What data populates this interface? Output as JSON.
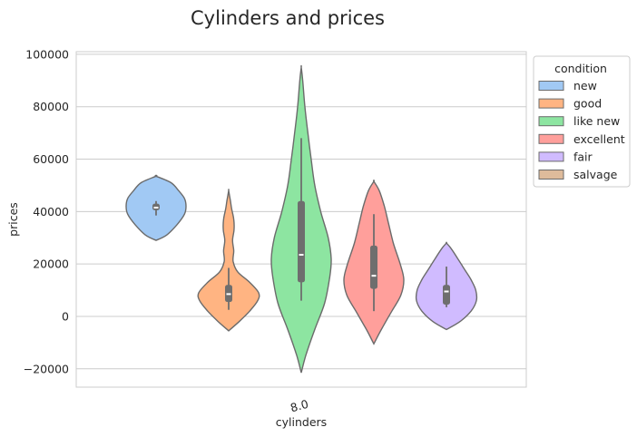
{
  "chart_data": {
    "type": "violin",
    "title": "Cylinders and prices",
    "xlabel": "cylinders",
    "ylabel": "prices",
    "categories": [
      "8.0"
    ],
    "ylim": [
      -27000,
      101000
    ],
    "yticks": [
      -20000,
      0,
      20000,
      40000,
      60000,
      80000,
      100000
    ],
    "ytick_labels": [
      "−20000",
      "0",
      "20000",
      "40000",
      "60000",
      "80000",
      "100000"
    ],
    "grid": true,
    "legend": {
      "title": "condition",
      "placement": "upper-right-outside"
    },
    "series": [
      {
        "name": "new",
        "color": "#a1c9f4",
        "quartiles": [
          40500,
          43000
        ],
        "median": 41500,
        "whisker": [
          38500,
          44000
        ],
        "violin": [
          [
            29000,
            0.0
          ],
          [
            31000,
            0.35
          ],
          [
            35000,
            0.7
          ],
          [
            39000,
            0.95
          ],
          [
            42000,
            1.0
          ],
          [
            45000,
            0.95
          ],
          [
            48000,
            0.75
          ],
          [
            51000,
            0.5
          ],
          [
            53500,
            0.0
          ]
        ]
      },
      {
        "name": "good",
        "color": "#ffb482",
        "quartiles": [
          5500,
          12000
        ],
        "median": 8500,
        "whisker": [
          2500,
          18500
        ],
        "violin": [
          [
            -5500,
            0.0
          ],
          [
            -2000,
            0.35
          ],
          [
            2000,
            0.7
          ],
          [
            6000,
            0.97
          ],
          [
            9000,
            1.0
          ],
          [
            13000,
            0.7
          ],
          [
            17000,
            0.3
          ],
          [
            21000,
            0.15
          ],
          [
            25000,
            0.17
          ],
          [
            29000,
            0.13
          ],
          [
            33000,
            0.18
          ],
          [
            37000,
            0.17
          ],
          [
            41000,
            0.1
          ],
          [
            44000,
            0.06
          ],
          [
            48000,
            0.0
          ]
        ]
      },
      {
        "name": "like new",
        "color": "#8de5a1",
        "quartiles": [
          13000,
          44000
        ],
        "median": 23500,
        "whisker": [
          6000,
          68000
        ],
        "violin": [
          [
            -21500,
            0.0
          ],
          [
            -15000,
            0.15
          ],
          [
            -5000,
            0.45
          ],
          [
            5000,
            0.78
          ],
          [
            15000,
            0.95
          ],
          [
            22000,
            1.0
          ],
          [
            30000,
            0.9
          ],
          [
            40000,
            0.65
          ],
          [
            50000,
            0.45
          ],
          [
            60000,
            0.33
          ],
          [
            70000,
            0.22
          ],
          [
            80000,
            0.12
          ],
          [
            90000,
            0.05
          ],
          [
            95000,
            0.0
          ]
        ]
      },
      {
        "name": "excellent",
        "color": "#ff9f9b",
        "quartiles": [
          10500,
          27000
        ],
        "median": 15500,
        "whisker": [
          2000,
          39000
        ],
        "violin": [
          [
            -10500,
            0.0
          ],
          [
            -5000,
            0.25
          ],
          [
            2000,
            0.6
          ],
          [
            8000,
            0.9
          ],
          [
            14000,
            1.0
          ],
          [
            20000,
            0.88
          ],
          [
            28000,
            0.65
          ],
          [
            36000,
            0.48
          ],
          [
            42000,
            0.35
          ],
          [
            48000,
            0.18
          ],
          [
            51500,
            0.0
          ]
        ]
      },
      {
        "name": "fair",
        "color": "#d0bbff",
        "quartiles": [
          4500,
          12000
        ],
        "median": 9500,
        "whisker": [
          3500,
          19000
        ],
        "violin": [
          [
            -5000,
            0.0
          ],
          [
            -2000,
            0.45
          ],
          [
            2000,
            0.82
          ],
          [
            6000,
            1.0
          ],
          [
            10000,
            0.98
          ],
          [
            14000,
            0.82
          ],
          [
            18000,
            0.6
          ],
          [
            22000,
            0.38
          ],
          [
            26000,
            0.15
          ],
          [
            28000,
            0.0
          ]
        ]
      },
      {
        "name": "salvage",
        "color": "#debb9b"
      }
    ]
  }
}
